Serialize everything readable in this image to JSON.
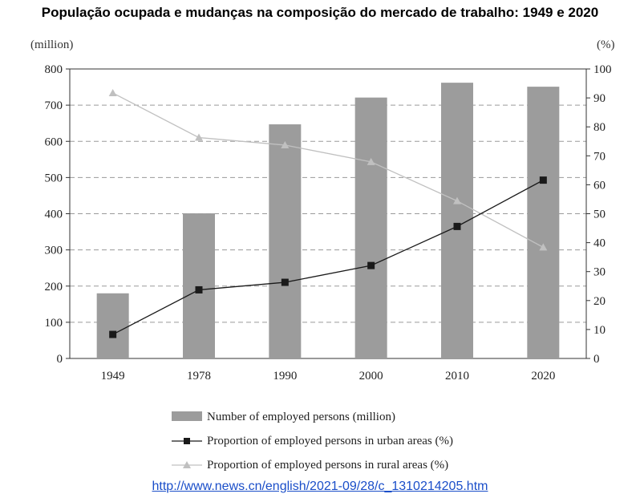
{
  "title": "População ocupada e mudanças na composição do mercado de trabalho: 1949 e 2020",
  "source_link": "http://www.news.cn/english/2021-09/28/c_1310214205.htm",
  "colors": {
    "bar": "#9c9c9c",
    "urban_line": "#1a1a1a",
    "rural_line": "#c0c0c0",
    "grid": "#9a9a9a",
    "link": "#1a4ec9"
  },
  "chart_data": {
    "type": "bar",
    "categories": [
      "1949",
      "1978",
      "1990",
      "2000",
      "2010",
      "2020"
    ],
    "y_left": {
      "label": "(million)",
      "ylim": [
        0,
        800
      ],
      "ticks": [
        "0",
        "100",
        "200",
        "300",
        "400",
        "500",
        "600",
        "700",
        "800"
      ]
    },
    "y_right": {
      "label": "(%)",
      "ylim": [
        0,
        100
      ],
      "ticks": [
        "0",
        "10",
        "20",
        "30",
        "40",
        "50",
        "60",
        "70",
        "80",
        "90",
        "100"
      ]
    },
    "grid": "horizontal dashed",
    "legend_placement": "bottom",
    "series": [
      {
        "name": "Number of employed persons (million)",
        "type": "bar",
        "axis": "left",
        "values": [
          180,
          401,
          647,
          721,
          762,
          751
        ]
      },
      {
        "name": "Proportion of employed persons in urban areas (%)",
        "type": "line",
        "marker": "square",
        "axis": "right",
        "values": [
          8.3,
          23.7,
          26.3,
          32.1,
          45.6,
          61.6
        ]
      },
      {
        "name": "Proportion of employed persons in rural areas (%)",
        "type": "line",
        "marker": "triangle",
        "axis": "right",
        "values": [
          91.7,
          76.3,
          73.7,
          67.9,
          54.4,
          38.4
        ]
      }
    ]
  }
}
